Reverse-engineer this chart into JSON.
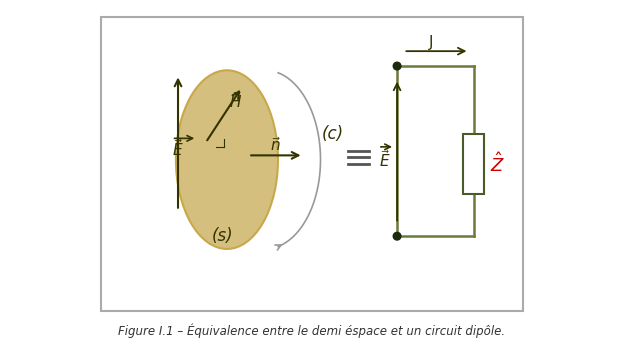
{
  "bg_color": "#ffffff",
  "border_color": "#aaaaaa",
  "ellipse_color": "#d4bf7f",
  "ellipse_edge_color": "#c8a84b",
  "arrow_color": "#333300",
  "circuit_color": "#4a5a2a",
  "circuit_line_color": "#6b7a3a",
  "dot_color": "#1a2a0a",
  "resistor_color": "#cccccc",
  "resistor_edge_color": "#6b7a3a",
  "z_color": "#cc0000",
  "equiv_color": "#555555",
  "curve_color": "#999999",
  "label_s": "(s)",
  "label_c": "(c)",
  "label_H": "$\\vec{H}$",
  "label_E_left": "$\\vec{E}$",
  "label_E_circuit": "$\\vec{E}$",
  "label_n": "$\\vec{n}$",
  "label_J": "J",
  "label_Z": "$\\hat{Z}$",
  "title": "Figure I.1 – Équivalence entre le demi éspace et un circuit dipôle."
}
